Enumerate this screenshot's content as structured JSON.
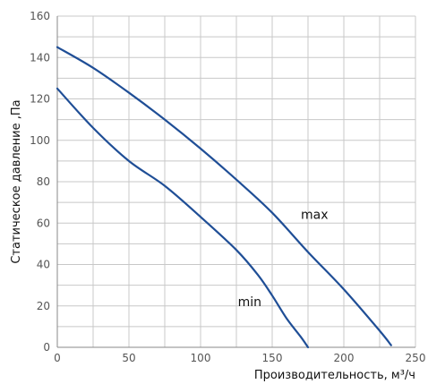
{
  "chart_data": {
    "type": "line",
    "xlabel": "Производительность, м³/ч",
    "ylabel": "Статическое давление ,Па",
    "xlim": [
      0,
      250
    ],
    "ylim": [
      0,
      160
    ],
    "xticks": [
      0,
      50,
      100,
      150,
      200,
      250
    ],
    "yticks": [
      0,
      20,
      40,
      60,
      80,
      100,
      120,
      140,
      160
    ],
    "xgrid": [
      0,
      25,
      50,
      75,
      100,
      125,
      150,
      175,
      200,
      225,
      250
    ],
    "ygrid": [
      0,
      10,
      20,
      30,
      40,
      50,
      60,
      70,
      80,
      90,
      100,
      110,
      120,
      130,
      140,
      150,
      160
    ],
    "grid": true,
    "line_color": "#1f4e96",
    "grid_color": "#c8c8c8",
    "series": [
      {
        "name": "max",
        "label_at": [
          170,
          62
        ],
        "x": [
          0,
          25,
          50,
          75,
          100,
          125,
          150,
          175,
          200,
          225,
          233
        ],
        "y": [
          145,
          135,
          123,
          110,
          96,
          81,
          65,
          46,
          28,
          8,
          1
        ]
      },
      {
        "name": "min",
        "label_at": [
          126,
          20
        ],
        "x": [
          0,
          25,
          50,
          75,
          100,
          125,
          140,
          150,
          160,
          170,
          175
        ],
        "y": [
          125,
          106,
          90,
          78,
          63,
          47,
          35,
          25,
          14,
          5,
          0
        ]
      }
    ]
  }
}
